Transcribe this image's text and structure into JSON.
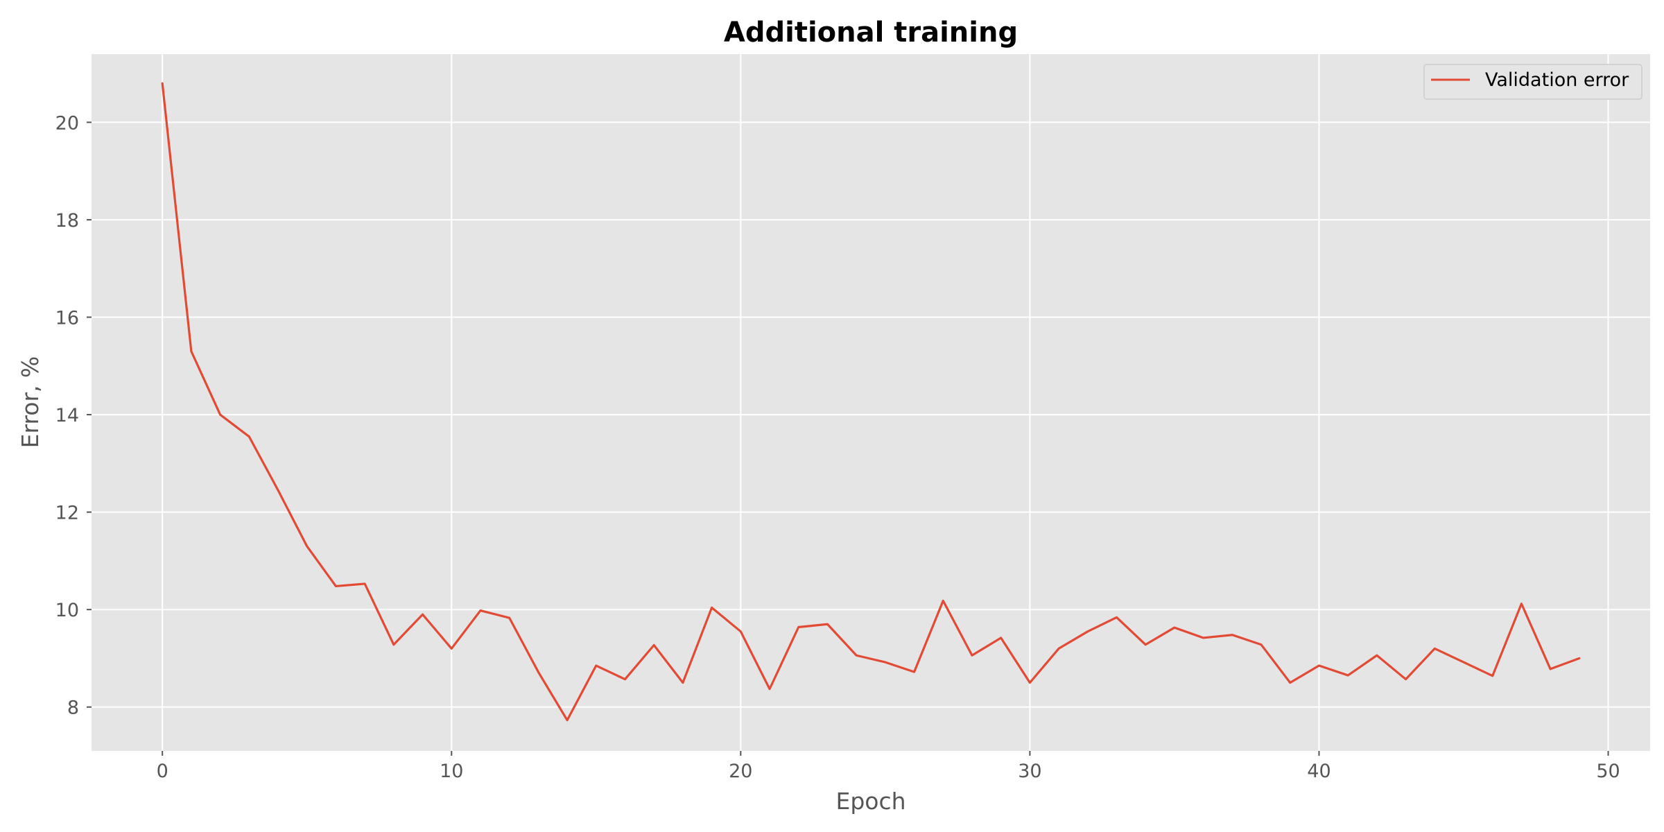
{
  "chart_data": {
    "type": "line",
    "title": "Additional training",
    "xlabel": "Epoch",
    "ylabel": "Error, %",
    "xlim": [
      -2.45,
      51.45
    ],
    "ylim": [
      7.1,
      21.4
    ],
    "xticks": [
      0,
      10,
      20,
      30,
      40,
      50
    ],
    "yticks": [
      8,
      10,
      12,
      14,
      16,
      18,
      20
    ],
    "grid": true,
    "legend_position": "top-right",
    "background_color": "#e5e5e5",
    "series": [
      {
        "name": "Validation error",
        "color": "#e24a33",
        "x": [
          0,
          1,
          2,
          3,
          4,
          5,
          6,
          7,
          8,
          9,
          10,
          11,
          12,
          13,
          14,
          15,
          16,
          17,
          18,
          19,
          20,
          21,
          22,
          23,
          24,
          25,
          26,
          27,
          28,
          29,
          30,
          31,
          32,
          33,
          34,
          35,
          36,
          37,
          38,
          39,
          40,
          41,
          42,
          43,
          44,
          45,
          46,
          47,
          48,
          49
        ],
        "y": [
          20.8,
          15.3,
          14.0,
          13.55,
          12.45,
          11.3,
          10.48,
          10.53,
          9.28,
          9.9,
          9.2,
          9.98,
          9.83,
          8.72,
          7.73,
          8.85,
          8.57,
          9.27,
          8.5,
          10.04,
          9.55,
          8.37,
          9.64,
          9.7,
          9.06,
          8.92,
          8.72,
          10.18,
          9.06,
          9.42,
          8.5,
          9.2,
          9.55,
          9.84,
          9.28,
          9.63,
          9.42,
          9.48,
          9.28,
          8.5,
          8.85,
          8.65,
          9.06,
          8.57,
          9.2,
          8.92,
          8.64,
          10.12,
          8.78,
          9.0
        ]
      }
    ]
  }
}
